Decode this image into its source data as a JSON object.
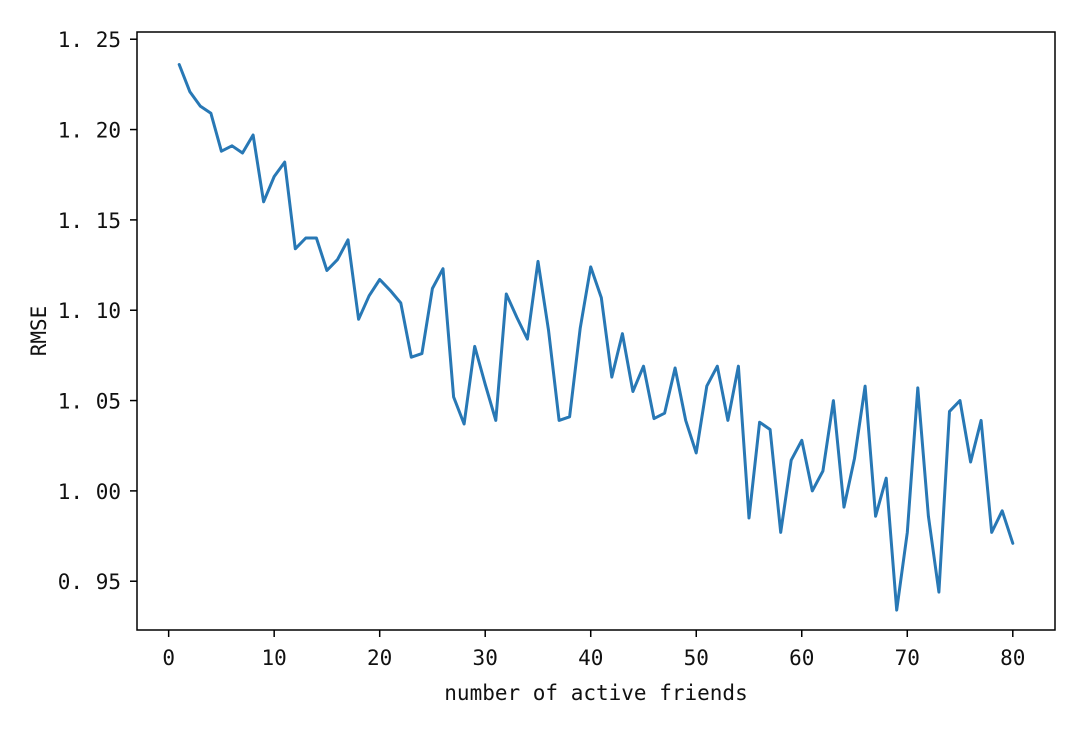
{
  "chart_data": {
    "type": "line",
    "title": "",
    "xlabel": "number of active friends",
    "ylabel": "RMSE",
    "xlim": [
      -3.0,
      84.0
    ],
    "ylim": [
      0.923,
      1.254
    ],
    "xticks": [
      0,
      10,
      20,
      30,
      40,
      50,
      60,
      70,
      80
    ],
    "yticks": [
      0.95,
      1.0,
      1.05,
      1.1,
      1.15,
      1.2,
      1.25
    ],
    "ytick_labels": [
      "0. 95",
      "1. 00",
      "1. 05",
      "1. 10",
      "1. 15",
      "1. 20",
      "1. 25"
    ],
    "grid": false,
    "series_color": "#2878b5",
    "series": [
      {
        "name": "",
        "x": [
          1,
          2,
          3,
          4,
          5,
          6,
          7,
          8,
          9,
          10,
          11,
          12,
          13,
          14,
          15,
          16,
          17,
          18,
          19,
          20,
          21,
          22,
          23,
          24,
          25,
          26,
          27,
          28,
          29,
          30,
          31,
          32,
          33,
          34,
          35,
          36,
          37,
          38,
          39,
          40,
          41,
          42,
          43,
          44,
          45,
          46,
          47,
          48,
          49,
          50,
          51,
          52,
          53,
          54,
          55,
          56,
          57,
          58,
          59,
          60,
          61,
          62,
          63,
          64,
          65,
          66,
          67,
          68,
          69,
          70,
          71,
          72,
          73,
          74,
          75,
          76,
          77,
          78,
          79,
          80
        ],
        "y": [
          1.236,
          1.221,
          1.213,
          1.209,
          1.188,
          1.191,
          1.187,
          1.197,
          1.16,
          1.174,
          1.182,
          1.134,
          1.14,
          1.14,
          1.122,
          1.128,
          1.139,
          1.095,
          1.108,
          1.117,
          1.111,
          1.104,
          1.074,
          1.076,
          1.112,
          1.123,
          1.052,
          1.037,
          1.08,
          1.059,
          1.039,
          1.109,
          1.096,
          1.084,
          1.127,
          1.089,
          1.039,
          1.041,
          1.09,
          1.124,
          1.107,
          1.063,
          1.087,
          1.055,
          1.069,
          1.04,
          1.043,
          1.068,
          1.039,
          1.021,
          1.058,
          1.069,
          1.039,
          1.069,
          0.985,
          1.038,
          1.034,
          0.977,
          1.017,
          1.028,
          1.0,
          1.011,
          1.05,
          0.991,
          1.018,
          1.058,
          0.986,
          1.007,
          0.934,
          0.977,
          1.057,
          0.986,
          0.944,
          1.044,
          1.05,
          1.016,
          1.039,
          0.977,
          0.989,
          0.971
        ]
      }
    ]
  }
}
